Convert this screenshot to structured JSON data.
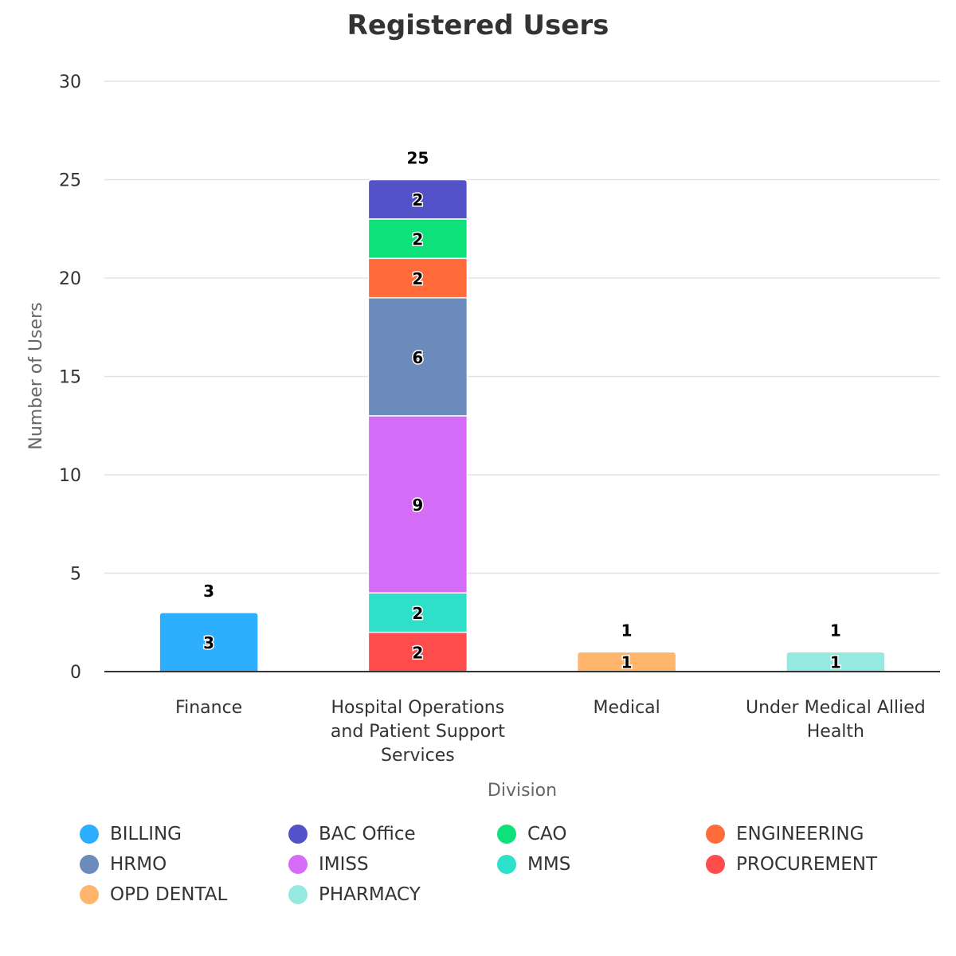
{
  "chart_data": {
    "type": "bar",
    "stacked": true,
    "title": "Registered Users",
    "xlabel": "Division",
    "ylabel": "Number of Users",
    "ylim": [
      0,
      30
    ],
    "yticks": [
      "0",
      "5",
      "10",
      "15",
      "20",
      "25",
      "30"
    ],
    "grid": true,
    "legend_position": "bottom",
    "categories": [
      [
        "Finance"
      ],
      [
        "Hospital Operations",
        "and Patient Support",
        "Services"
      ],
      [
        "Medical"
      ],
      [
        "Under Medical Allied",
        "Health"
      ]
    ],
    "totals": [
      3,
      25,
      1,
      1
    ],
    "series": [
      {
        "name": "PROCUREMENT",
        "color": "#ff4d4d",
        "values": [
          0,
          2,
          0,
          0
        ]
      },
      {
        "name": "MMS",
        "color": "#2ee0c9",
        "values": [
          0,
          2,
          0,
          0
        ]
      },
      {
        "name": "IMISS",
        "color": "#d56cf7",
        "values": [
          0,
          9,
          0,
          0
        ]
      },
      {
        "name": "HRMO",
        "color": "#6a8bbb",
        "values": [
          0,
          6,
          0,
          0
        ]
      },
      {
        "name": "ENGINEERING",
        "color": "#ff6b3b",
        "values": [
          0,
          2,
          0,
          0
        ]
      },
      {
        "name": "CAO",
        "color": "#0ee07a",
        "values": [
          0,
          2,
          0,
          0
        ]
      },
      {
        "name": "BAC Office",
        "color": "#5352c8",
        "values": [
          0,
          2,
          0,
          0
        ]
      },
      {
        "name": "BILLING",
        "color": "#2eaeff",
        "values": [
          3,
          0,
          0,
          0
        ]
      },
      {
        "name": "OPD DENTAL",
        "color": "#ffb56b",
        "values": [
          0,
          0,
          1,
          0
        ]
      },
      {
        "name": "PHARMACY",
        "color": "#95e9e1",
        "values": [
          0,
          0,
          0,
          1
        ]
      }
    ],
    "legend": [
      {
        "name": "BILLING",
        "color": "#2eaeff"
      },
      {
        "name": "BAC Office",
        "color": "#5352c8"
      },
      {
        "name": "CAO",
        "color": "#0ee07a"
      },
      {
        "name": "ENGINEERING",
        "color": "#ff6b3b"
      },
      {
        "name": "HRMO",
        "color": "#6a8bbb"
      },
      {
        "name": "IMISS",
        "color": "#d56cf7"
      },
      {
        "name": "MMS",
        "color": "#2ee0c9"
      },
      {
        "name": "PROCUREMENT",
        "color": "#ff4d4d"
      },
      {
        "name": "OPD DENTAL",
        "color": "#ffb56b"
      },
      {
        "name": "PHARMACY",
        "color": "#95e9e1"
      }
    ]
  }
}
